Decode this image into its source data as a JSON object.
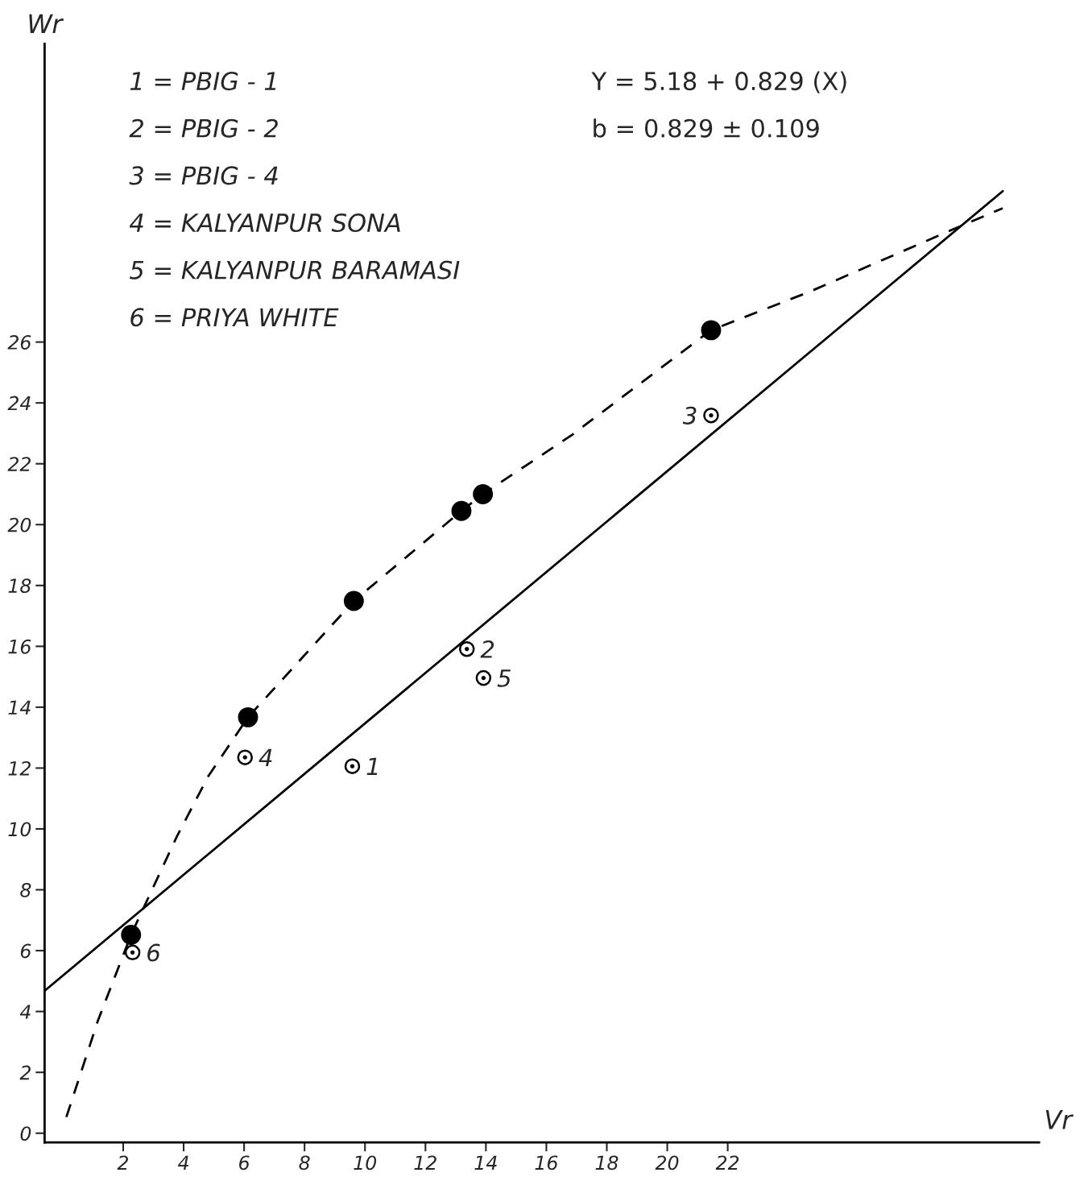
{
  "chart_data": {
    "type": "scatter",
    "xlabel": "Vr",
    "ylabel": "Wr",
    "xlim": [
      -0.6,
      32.3
    ],
    "ylim": [
      -0.3,
      35.8
    ],
    "xticks": [
      2,
      4,
      6,
      8,
      10,
      12,
      14,
      16,
      18,
      20,
      22
    ],
    "yticks": [
      0,
      2,
      4,
      6,
      8,
      10,
      12,
      14,
      16,
      18,
      20,
      22,
      24,
      26
    ],
    "grid": false,
    "legend": false,
    "series": [
      {
        "color": "#000000",
        "marker": "circle",
        "x": [
          9.58,
          13.37,
          21.45,
          6.03,
          13.92,
          2.31
        ],
        "values": [
          12.06,
          15.91,
          23.59,
          12.35,
          14.96,
          5.94
        ]
      },
      {
        "color": "#000000",
        "marker": "circle",
        "x": [
          2.26,
          6.13,
          9.63,
          13.19,
          13.9,
          21.45
        ],
        "values": [
          6.52,
          13.67,
          17.49,
          20.45,
          21.0,
          26.39
        ]
      },
      {
        "type": "line",
        "color": "#000000",
        "line_style": "solid",
        "x": [
          -0.6,
          31.1
        ],
        "values": [
          4.68,
          30.96
        ]
      },
      {
        "type": "line",
        "color": "#000000",
        "line_style": "dashed",
        "x": [
          0.12,
          1.16,
          2.26,
          3.78,
          4.82,
          6.13,
          9.63,
          13.19,
          13.9,
          16.85,
          21.45,
          24.7,
          29.4,
          31.1
        ],
        "values": [
          0.53,
          3.69,
          6.52,
          9.76,
          11.74,
          13.67,
          17.49,
          20.45,
          21.0,
          22.95,
          26.39,
          27.65,
          29.68,
          30.4
        ]
      }
    ],
    "annotations": [
      "1 = PBIG - 1",
      "2 = PBIG - 2",
      "3 = PBIG - 4",
      "4 = KALYANPUR SONA",
      "5 = KALYANPUR BARAMASI",
      "6 = PRIYA WHITE",
      "Y = 5.18 + 0.829 (X)",
      "b = 0.829 ± 0.109",
      {
        "text": "1",
        "x": 9.58,
        "y": 12.06
      },
      {
        "text": "2",
        "x": 13.37,
        "y": 15.91
      },
      {
        "text": "3",
        "x": 21.45,
        "y": 23.59
      },
      {
        "text": "4",
        "x": 6.03,
        "y": 12.35
      },
      {
        "text": "5",
        "x": 13.92,
        "y": 14.96
      },
      {
        "text": "6",
        "x": 2.31,
        "y": 5.94
      }
    ]
  }
}
